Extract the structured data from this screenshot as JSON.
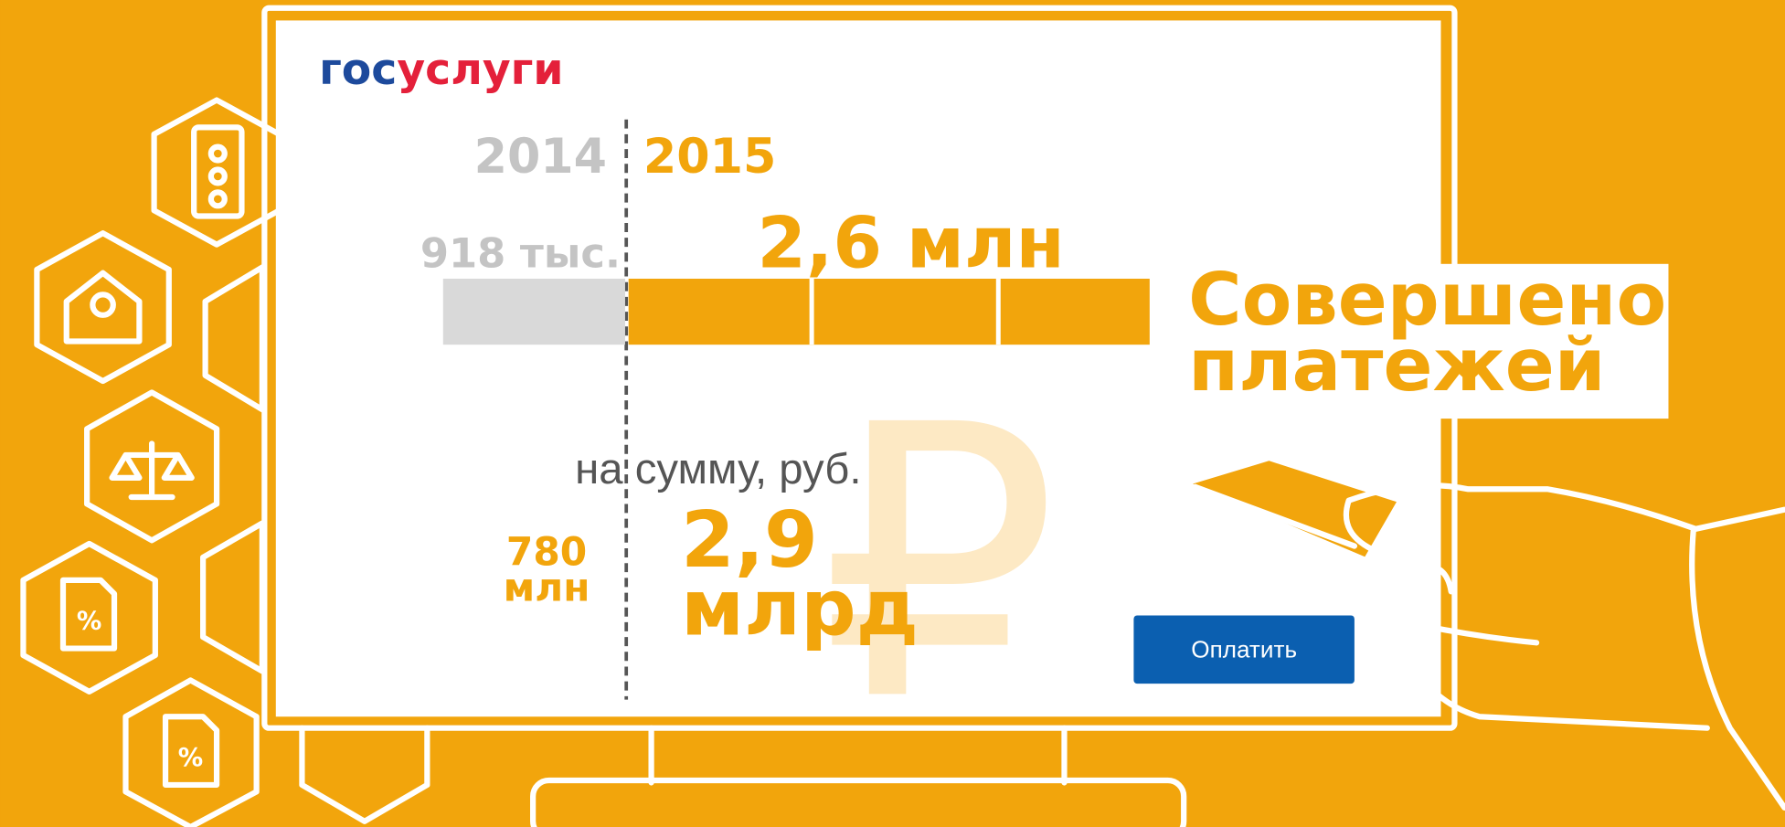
{
  "logo": {
    "part1": "гос",
    "part2": "услуги"
  },
  "years": {
    "left": "2014",
    "right": "2015"
  },
  "payments": {
    "left": "918 тыс.",
    "right": "2,6 млн"
  },
  "headline": {
    "line1": "Совершено",
    "line2": "платежей"
  },
  "sum_caption": "на сумму, руб.",
  "sums": {
    "left": {
      "line1": "780",
      "line2": "млн"
    },
    "right": {
      "line1": "2,9",
      "line2": "млрд"
    }
  },
  "button": "Оплатить"
}
